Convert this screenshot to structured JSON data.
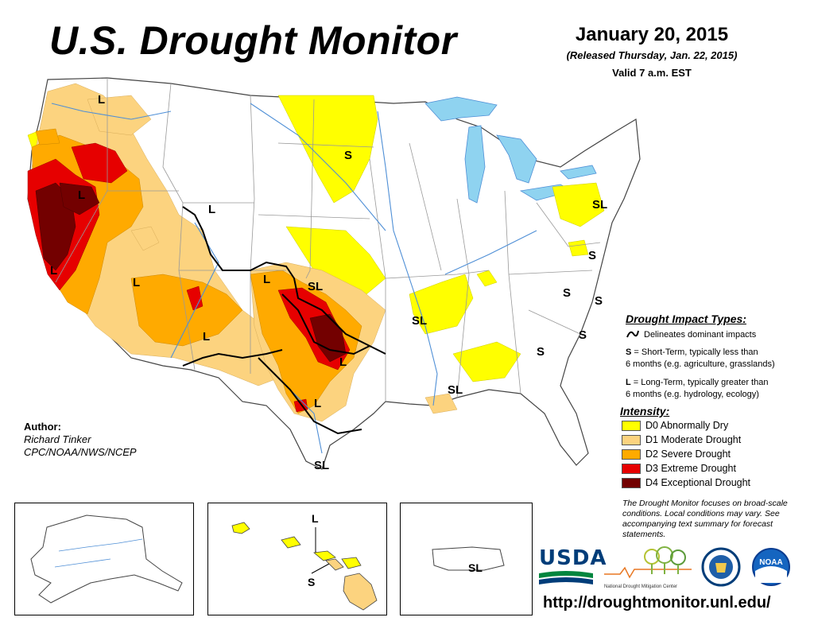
{
  "header": {
    "title": "U.S. Drought Monitor",
    "date": "January 20, 2015",
    "released": "(Released Thursday, Jan. 22, 2015)",
    "valid": "Valid 7 a.m. EST"
  },
  "map_labels": [
    {
      "text": "L",
      "name": "label-oregon"
    },
    {
      "text": "S",
      "name": "label-south-dakota"
    },
    {
      "text": "L",
      "name": "label-nevada"
    },
    {
      "text": "L",
      "name": "label-wyoming"
    },
    {
      "text": "SL",
      "name": "label-new-york"
    },
    {
      "text": "S",
      "name": "label-maryland"
    },
    {
      "text": "L",
      "name": "label-california"
    },
    {
      "text": "L",
      "name": "label-arizona"
    },
    {
      "text": "L",
      "name": "label-colorado"
    },
    {
      "text": "SL",
      "name": "label-oklahoma"
    },
    {
      "text": "L",
      "name": "label-new-mexico"
    },
    {
      "text": "L",
      "name": "label-north-texas"
    },
    {
      "text": "L",
      "name": "label-central-texas"
    },
    {
      "text": "SL",
      "name": "label-south-texas"
    },
    {
      "text": "SL",
      "name": "label-arkansas"
    },
    {
      "text": "SL",
      "name": "label-mississippi"
    },
    {
      "text": "S",
      "name": "label-virginia"
    },
    {
      "text": "S",
      "name": "label-north-carolina-east"
    },
    {
      "text": "S",
      "name": "label-north-carolina-coast"
    },
    {
      "text": "S",
      "name": "label-georgia"
    }
  ],
  "legend": {
    "impact_title": "Drought Impact Types:",
    "delineates": "Delineates dominant impacts",
    "short_term_key": "S",
    "short_term_line1": "= Short-Term, typically less than",
    "short_term_line2": "6 months (e.g. agriculture, grasslands)",
    "long_term_key": "L",
    "long_term_line1": "= Long-Term, typically greater than",
    "long_term_line2": "6 months (e.g. hydrology, ecology)",
    "intensity_title": "Intensity:",
    "items": [
      {
        "label": "D0 Abnormally Dry",
        "color": "#ffff00"
      },
      {
        "label": "D1 Moderate Drought",
        "color": "#fcd37f"
      },
      {
        "label": "D2 Severe Drought",
        "color": "#ffaa00"
      },
      {
        "label": "D3 Extreme Drought",
        "color": "#e60000"
      },
      {
        "label": "D4 Exceptional Drought",
        "color": "#730000"
      }
    ]
  },
  "author": {
    "label": "Author:",
    "name": "Richard Tinker",
    "org": "CPC/NOAA/NWS/NCEP"
  },
  "note": "The Drought Monitor focuses on broad-scale conditions. Local conditions may vary. See accompanying text summary for forecast statements.",
  "insets": {
    "hawaii_label_l": "L",
    "hawaii_label_s": "S",
    "pr_label": "SL"
  },
  "logos": {
    "usda": "USDA",
    "ndmc": "National Drought Mitigation Center",
    "noaa": "NOAA"
  },
  "url": "http://droughtmonitor.unl.edu/",
  "colors": {
    "water": "#8fd3f0",
    "state_border": "#999999",
    "river": "#4f8fd6",
    "impact_line": "#000000"
  }
}
